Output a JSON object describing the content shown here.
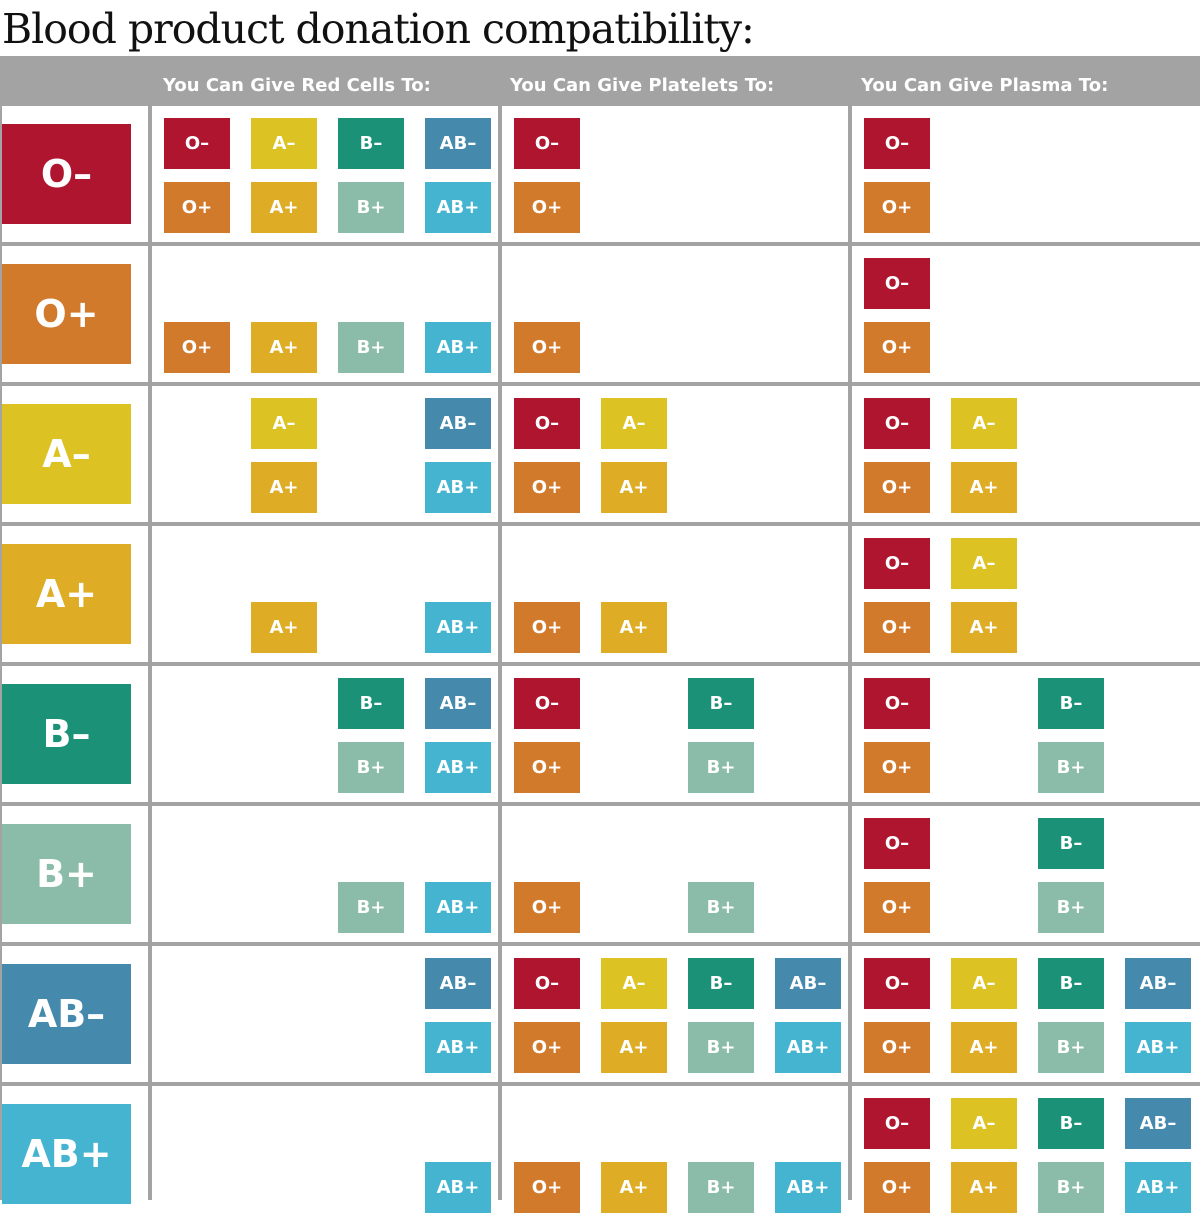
{
  "title": "Blood product donation compatibility:",
  "columns": [
    {
      "key": "red_cells",
      "header": "You Can Give Red Cells To:"
    },
    {
      "key": "platelets",
      "header": "You Can Give Platelets To:"
    },
    {
      "key": "plasma",
      "header": "You Can Give Plasma To:"
    }
  ],
  "types": [
    {
      "id": "Ominus",
      "label": "O–",
      "color": "#b0152f"
    },
    {
      "id": "Oplus",
      "label": "O+",
      "color": "#d17a2c"
    },
    {
      "id": "Aminus",
      "label": "A–",
      "color": "#dcc323"
    },
    {
      "id": "Aplus",
      "label": "A+",
      "color": "#dfac25"
    },
    {
      "id": "Bminus",
      "label": "B–",
      "color": "#1b9278"
    },
    {
      "id": "Bplus",
      "label": "B+",
      "color": "#8bbcaa"
    },
    {
      "id": "ABminus",
      "label": "AB–",
      "color": "#4589ad"
    },
    {
      "id": "ABplus",
      "label": "AB+",
      "color": "#45b4d1"
    }
  ],
  "rows": [
    {
      "donor": "O–",
      "red_cells": [
        "O–",
        "A–",
        "B–",
        "AB–",
        "O+",
        "A+",
        "B+",
        "AB+"
      ],
      "platelets": [
        "O–",
        "O+"
      ],
      "plasma": [
        "O–",
        "O+"
      ]
    },
    {
      "donor": "O+",
      "red_cells": [
        "O+",
        "A+",
        "B+",
        "AB+"
      ],
      "platelets": [
        "O+"
      ],
      "plasma": [
        "O–",
        "O+"
      ]
    },
    {
      "donor": "A–",
      "red_cells": [
        "A–",
        "AB–",
        "A+",
        "AB+"
      ],
      "platelets": [
        "O–",
        "A–",
        "O+",
        "A+"
      ],
      "plasma": [
        "O–",
        "A–",
        "O+",
        "A+"
      ]
    },
    {
      "donor": "A+",
      "red_cells": [
        "A+",
        "AB+"
      ],
      "platelets": [
        "O+",
        "A+"
      ],
      "plasma": [
        "O–",
        "A–",
        "O+",
        "A+"
      ]
    },
    {
      "donor": "B–",
      "red_cells": [
        "B–",
        "AB–",
        "B+",
        "AB+"
      ],
      "platelets": [
        "O–",
        "B–",
        "O+",
        "B+"
      ],
      "plasma": [
        "O–",
        "B–",
        "O+",
        "B+"
      ]
    },
    {
      "donor": "B+",
      "red_cells": [
        "B+",
        "AB+"
      ],
      "platelets": [
        "O+",
        "B+"
      ],
      "plasma": [
        "O–",
        "B–",
        "O+",
        "B+"
      ]
    },
    {
      "donor": "AB–",
      "red_cells": [
        "AB–",
        "AB+"
      ],
      "platelets": [
        "O–",
        "A–",
        "B–",
        "AB–",
        "O+",
        "A+",
        "B+",
        "AB+"
      ],
      "plasma": [
        "O–",
        "A–",
        "B–",
        "AB–",
        "O+",
        "A+",
        "B+",
        "AB+"
      ]
    },
    {
      "donor": "AB+",
      "red_cells": [
        "AB+"
      ],
      "platelets": [
        "O+",
        "A+",
        "B+",
        "AB+"
      ],
      "plasma": [
        "O–",
        "A–",
        "B–",
        "AB–",
        "O+",
        "A+",
        "B+",
        "AB+"
      ]
    }
  ]
}
